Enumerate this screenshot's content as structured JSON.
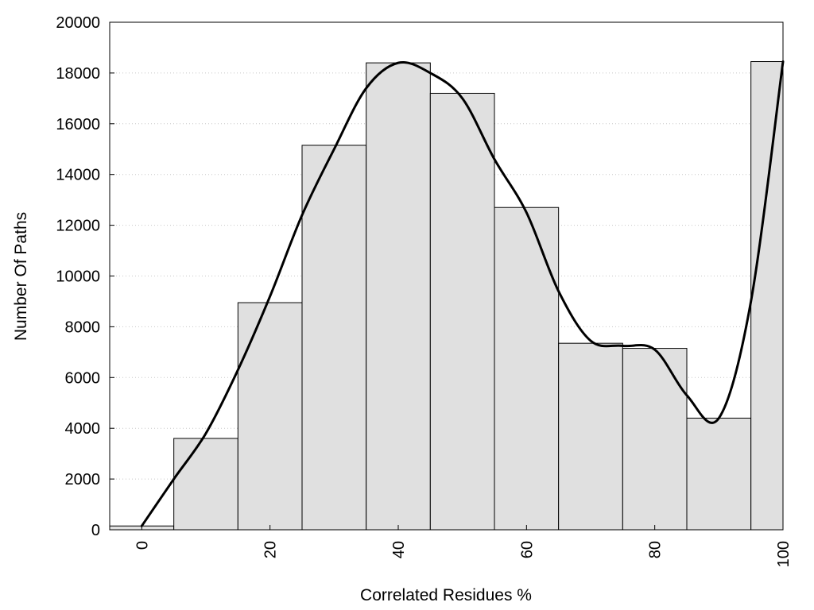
{
  "chart_data": {
    "type": "bar",
    "xlabel": "Correlated Residues %",
    "ylabel": "Number Of Paths",
    "xlim": [
      -5,
      100
    ],
    "ylim": [
      0,
      20000
    ],
    "grid": "horizontal dotted",
    "x_ticks": [
      0,
      20,
      40,
      60,
      80,
      100
    ],
    "x_tick_labels": [
      "0",
      "20",
      "40",
      "60",
      "80",
      "100"
    ],
    "y_ticks": [
      0,
      2000,
      4000,
      6000,
      8000,
      10000,
      12000,
      14000,
      16000,
      18000,
      20000
    ],
    "y_tick_labels": [
      "0",
      "2000",
      "4000",
      "6000",
      "8000",
      "10000",
      "12000",
      "14000",
      "16000",
      "18000",
      "20000"
    ],
    "bin_width": 10,
    "categories": [
      0,
      10,
      20,
      30,
      40,
      50,
      60,
      70,
      80,
      90,
      100
    ],
    "values": [
      150,
      3600,
      8950,
      15150,
      18400,
      17200,
      12700,
      7350,
      7150,
      4400,
      18450
    ],
    "smooth_curve": {
      "x": [
        0,
        5,
        10,
        15,
        20,
        25,
        30,
        35,
        40,
        45,
        50,
        55,
        60,
        65,
        70,
        75,
        80,
        85,
        90,
        95,
        100
      ],
      "y": [
        150,
        2000,
        3800,
        6300,
        9200,
        12400,
        15000,
        17400,
        18400,
        18000,
        17000,
        14600,
        12500,
        9400,
        7450,
        7250,
        7100,
        5300,
        4400,
        9000,
        18450
      ]
    }
  },
  "colors": {
    "bar_fill": "#e0e0e0",
    "bar_stroke": "#000000",
    "curve": "#000000",
    "grid": "#c8c8c8"
  }
}
